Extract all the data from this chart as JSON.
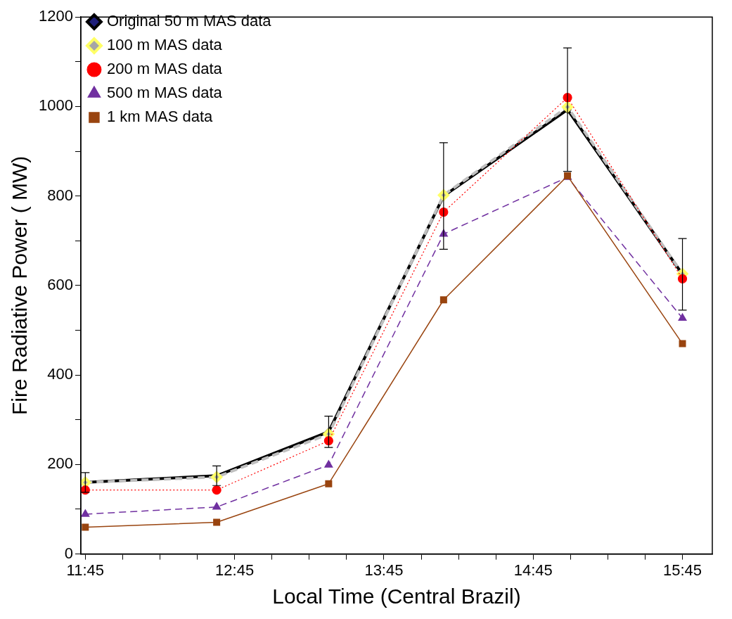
{
  "chart_data": {
    "type": "line",
    "xlabel": "Local Time (Central Brazil)",
    "ylabel": "Fire Radiative Power ( MW)",
    "x": [
      11.75,
      12.63,
      13.38,
      14.15,
      14.98,
      15.75
    ],
    "xlim": [
      11.72,
      15.95
    ],
    "xticks": [
      {
        "value": 11.75,
        "label": "11:45"
      },
      {
        "value": 12,
        "label": null
      },
      {
        "value": 12.25,
        "label": null
      },
      {
        "value": 12.5,
        "label": null
      },
      {
        "value": 12.75,
        "label": "12:45"
      },
      {
        "value": 13,
        "label": null
      },
      {
        "value": 13.25,
        "label": null
      },
      {
        "value": 13.5,
        "label": null
      },
      {
        "value": 13.75,
        "label": "13:45"
      },
      {
        "value": 14,
        "label": null
      },
      {
        "value": 14.25,
        "label": null
      },
      {
        "value": 14.5,
        "label": null
      },
      {
        "value": 14.75,
        "label": "14:45"
      },
      {
        "value": 15,
        "label": null
      },
      {
        "value": 15.25,
        "label": null
      },
      {
        "value": 15.5,
        "label": null
      },
      {
        "value": 15.75,
        "label": "15:45"
      }
    ],
    "ylim": [
      0,
      1200
    ],
    "yticks": [
      0,
      {
        "value": 100,
        "label": null
      },
      200,
      {
        "value": 300,
        "label": null
      },
      400,
      {
        "value": 500,
        "label": null
      },
      600,
      {
        "value": 700,
        "label": null
      },
      800,
      {
        "value": 900,
        "label": null
      },
      1000,
      {
        "value": 1100,
        "label": null
      },
      1200
    ],
    "grid": false,
    "legend": "top left",
    "series": [
      {
        "name": "Original 50 m MAS data",
        "color": "#000000",
        "marker": "diamond",
        "line_style": "solid",
        "values": [
          160,
          175,
          273,
          800,
          993,
          625
        ],
        "errors": [
          22,
          22,
          35,
          119,
          138,
          80
        ]
      },
      {
        "name": "100 m MAS data",
        "color": "#bfbfbf",
        "marker": "diamond",
        "line_style": "dashed",
        "values": [
          160,
          172,
          268,
          802,
          999,
          626
        ]
      },
      {
        "name": "200 m MAS data",
        "color": "#ff0000",
        "marker": "circle",
        "line_style": "dotted",
        "values": [
          143,
          143,
          253,
          764,
          1020,
          615
        ]
      },
      {
        "name": "500 m MAS data",
        "color": "#7030a0",
        "marker": "triangle",
        "line_style": "dashed",
        "values": [
          89,
          105,
          199,
          715,
          842,
          527
        ]
      },
      {
        "name": "1 km MAS data",
        "color": "#99440f",
        "marker": "square",
        "line_style": "solid",
        "values": [
          60,
          71,
          157,
          568,
          845,
          470
        ]
      }
    ]
  }
}
